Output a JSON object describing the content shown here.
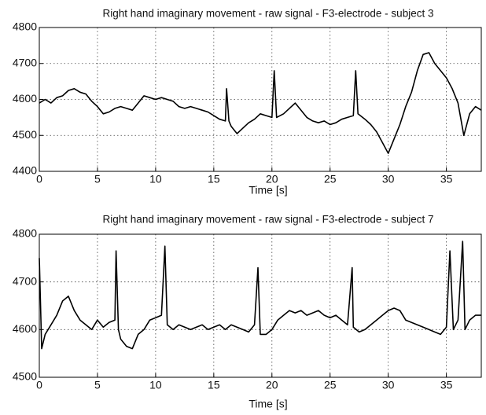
{
  "chart_data": [
    {
      "type": "line",
      "title": "Right hand imaginary movement - raw signal - F3-electrode - subject 3",
      "xlabel": "Time [s]",
      "color": "#000000",
      "grid": true,
      "xlim": [
        0,
        38
      ],
      "xticks": [
        0,
        5,
        10,
        15,
        20,
        25,
        30,
        35
      ],
      "ylim": [
        4400,
        4800
      ],
      "yticks": [
        4400,
        4500,
        4600,
        4700,
        4800
      ],
      "x": [
        0,
        0.5,
        1,
        1.5,
        2,
        2.5,
        3,
        3.5,
        4,
        4.5,
        5,
        5.5,
        6,
        6.5,
        7,
        7.5,
        8,
        8.5,
        9,
        9.5,
        10,
        10.5,
        11,
        11.5,
        12,
        12.5,
        13,
        13.5,
        14,
        14.5,
        15,
        15.5,
        16,
        16.1,
        16.3,
        16.5,
        17,
        17.5,
        18,
        18.5,
        19,
        19.5,
        20,
        20.2,
        20.4,
        21,
        21.5,
        22,
        22.5,
        23,
        23.5,
        24,
        24.5,
        25,
        25.5,
        26,
        26.5,
        27,
        27.2,
        27.4,
        28,
        28.5,
        29,
        29.5,
        30,
        30.5,
        31,
        31.5,
        32,
        32.5,
        33,
        33.5,
        34,
        34.5,
        35,
        35.5,
        36,
        36.5,
        37,
        37.5,
        38
      ],
      "values": [
        4590,
        4600,
        4590,
        4605,
        4610,
        4625,
        4630,
        4620,
        4615,
        4595,
        4580,
        4560,
        4565,
        4575,
        4580,
        4575,
        4570,
        4590,
        4610,
        4605,
        4600,
        4605,
        4600,
        4595,
        4580,
        4575,
        4580,
        4575,
        4570,
        4565,
        4555,
        4545,
        4540,
        4630,
        4540,
        4525,
        4505,
        4520,
        4535,
        4545,
        4560,
        4555,
        4550,
        4680,
        4550,
        4560,
        4575,
        4590,
        4570,
        4550,
        4540,
        4535,
        4540,
        4530,
        4535,
        4545,
        4550,
        4555,
        4680,
        4560,
        4545,
        4530,
        4510,
        4480,
        4450,
        4490,
        4530,
        4580,
        4620,
        4680,
        4725,
        4730,
        4700,
        4680,
        4660,
        4630,
        4590,
        4500,
        4560,
        4580,
        4570
      ]
    },
    {
      "type": "line",
      "title": "Right hand imaginary movement - raw signal - F3-electrode - subject 7",
      "xlabel": "Time [s]",
      "color": "#000000",
      "grid": true,
      "xlim": [
        0,
        38
      ],
      "xticks": [
        0,
        5,
        10,
        15,
        20,
        25,
        30,
        35
      ],
      "ylim": [
        4500,
        4800
      ],
      "yticks": [
        4500,
        4600,
        4700,
        4800
      ],
      "x": [
        0,
        0.2,
        0.5,
        1,
        1.5,
        2,
        2.5,
        3,
        3.5,
        4,
        4.5,
        5,
        5.5,
        6,
        6.5,
        6.6,
        6.8,
        7,
        7.5,
        8,
        8.5,
        9,
        9.5,
        10,
        10.5,
        10.8,
        11,
        11.5,
        12,
        12.5,
        13,
        13.5,
        14,
        14.5,
        15,
        15.5,
        16,
        16.5,
        17,
        17.5,
        18,
        18.5,
        18.8,
        19,
        19.5,
        20,
        20.5,
        21,
        21.5,
        22,
        22.5,
        23,
        23.5,
        24,
        24.5,
        25,
        25.5,
        26,
        26.5,
        26.9,
        27,
        27.5,
        28,
        28.5,
        29,
        29.5,
        30,
        30.5,
        31,
        31.5,
        32,
        32.5,
        33,
        33.5,
        34,
        34.5,
        35,
        35.3,
        35.6,
        36,
        36.4,
        36.6,
        37,
        37.5,
        38
      ],
      "values": [
        4750,
        4560,
        4590,
        4610,
        4630,
        4660,
        4670,
        4640,
        4620,
        4610,
        4600,
        4620,
        4605,
        4615,
        4620,
        4765,
        4600,
        4580,
        4565,
        4560,
        4590,
        4600,
        4620,
        4625,
        4630,
        4775,
        4610,
        4600,
        4610,
        4605,
        4600,
        4605,
        4610,
        4600,
        4605,
        4610,
        4600,
        4610,
        4605,
        4600,
        4595,
        4610,
        4730,
        4590,
        4590,
        4600,
        4620,
        4630,
        4640,
        4635,
        4640,
        4630,
        4635,
        4640,
        4630,
        4625,
        4630,
        4620,
        4610,
        4730,
        4605,
        4595,
        4600,
        4610,
        4620,
        4630,
        4640,
        4645,
        4640,
        4620,
        4615,
        4610,
        4605,
        4600,
        4595,
        4590,
        4605,
        4765,
        4600,
        4620,
        4785,
        4600,
        4620,
        4630,
        4630
      ]
    }
  ]
}
